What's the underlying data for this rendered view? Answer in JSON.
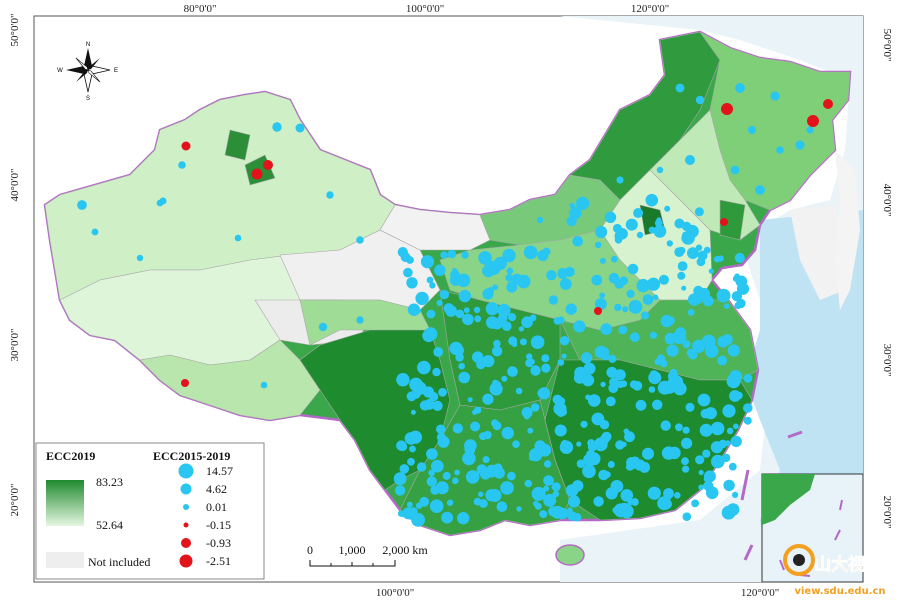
{
  "map": {
    "coords": {
      "top": [
        "80°0'0\"",
        "100°0'0\"",
        "120°0'0\""
      ],
      "bottom": [
        "100°0'0\"",
        "120°0'0\""
      ],
      "left": [
        "50°0'0\"",
        "40°0'0\"",
        "30°0'0\"",
        "20°0'0\""
      ],
      "right": [
        "50°0'0\"",
        "40°0'0\"",
        "30°0'0\"",
        "20°0'0\""
      ]
    },
    "compass": {
      "n": "N",
      "s": "S",
      "e": "E",
      "w": "W"
    },
    "scale_bar": {
      "labels": [
        "0",
        "1,000",
        "2,000 km"
      ]
    },
    "legend": {
      "title_left": "ECC2019",
      "gradient_max": "83.23",
      "gradient_min": "52.64",
      "not_included": "Not included",
      "title_right": "ECC2015-2019",
      "items": [
        "14.57",
        "4.62",
        "0.01",
        "-0.15",
        "-0.93",
        "-2.51"
      ],
      "colors": {
        "positive": "#29c6f2",
        "negative": "#e3131b",
        "dark_green": "#1e8a2e",
        "light_green": "#e6f7e1",
        "not_included": "#eeeeee"
      }
    },
    "watermark": {
      "text_cn": "山大视点",
      "text_url": "view.sdu.edu.cn"
    }
  }
}
